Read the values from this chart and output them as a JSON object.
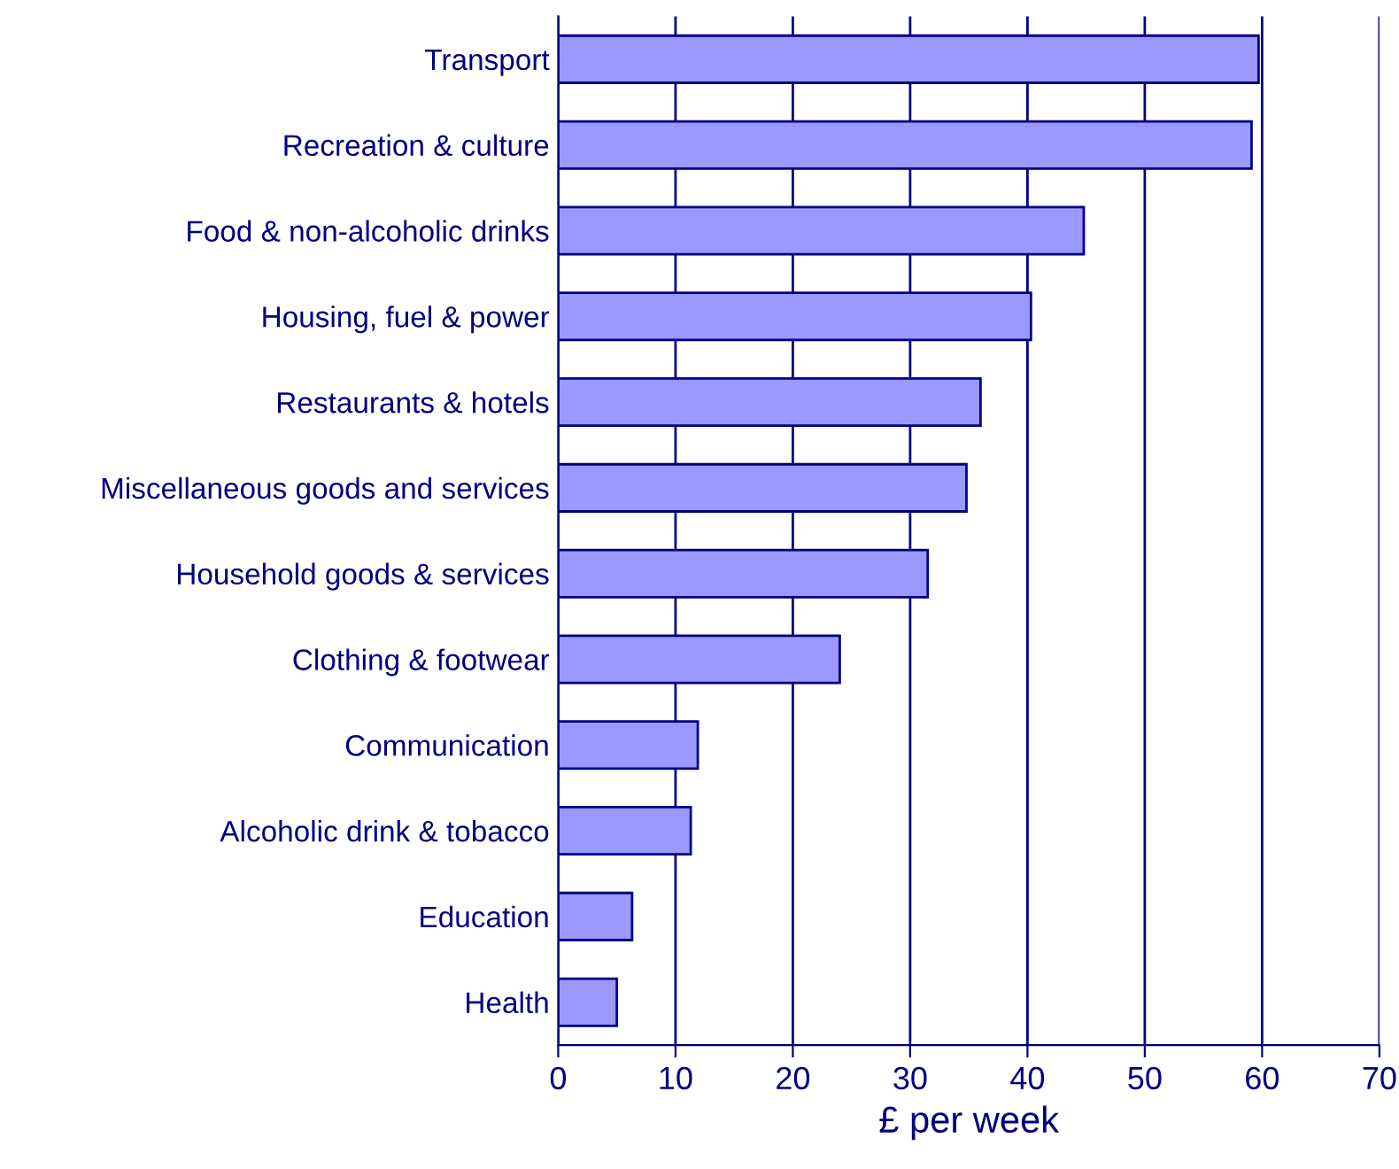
{
  "chart_data": {
    "type": "bar",
    "orientation": "horizontal",
    "xlabel": "£ per week",
    "categories": [
      "Transport",
      "Recreation & culture",
      "Food & non-alcoholic drinks",
      "Housing, fuel & power",
      "Restaurants & hotels",
      "Miscellaneous goods and services",
      "Household goods & services",
      "Clothing & footwear",
      "Communication",
      "Alcoholic drink & tobacco",
      "Education",
      "Health"
    ],
    "values": [
      59.7,
      59.1,
      44.8,
      40.3,
      36.0,
      34.8,
      31.5,
      24.0,
      11.9,
      11.3,
      6.3,
      5.0
    ],
    "color": "#9999ff",
    "xlim": [
      0,
      70
    ],
    "xticks": [
      0,
      10,
      20,
      30,
      40,
      50,
      60,
      70
    ],
    "grid": "x",
    "legend": false
  }
}
